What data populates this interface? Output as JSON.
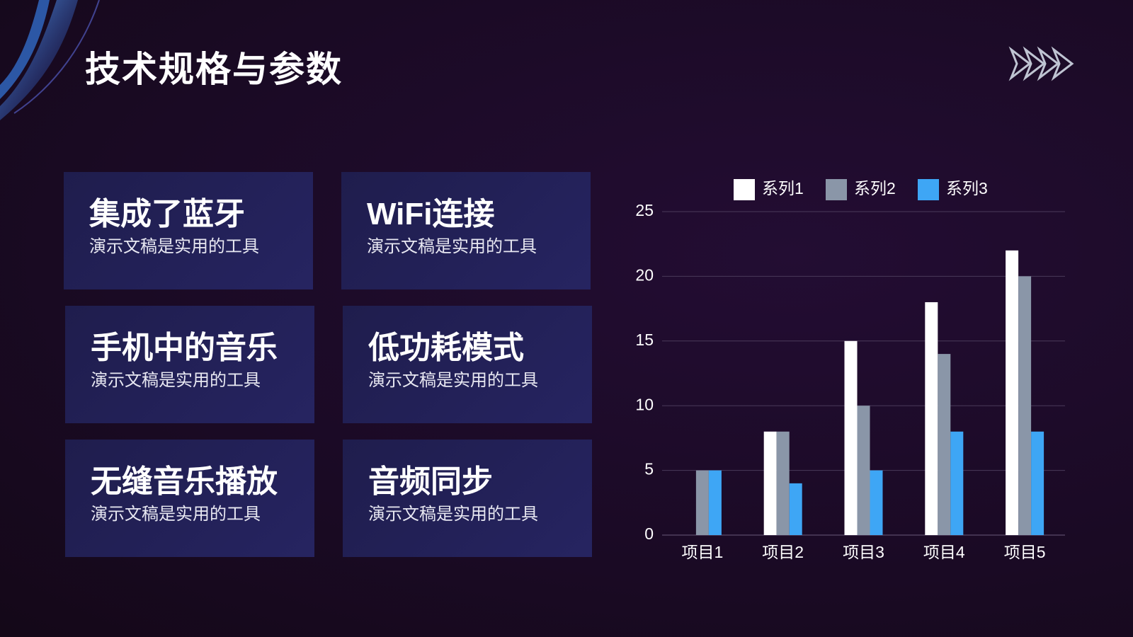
{
  "title": "技术规格与参数",
  "cards": [
    {
      "title": "集成了蓝牙",
      "text": "演示文稿是实用的工具"
    },
    {
      "title": "WiFi连接",
      "text": "演示文稿是实用的工具"
    },
    {
      "title": "手机中的音乐",
      "text": "演示文稿是实用的工具"
    },
    {
      "title": "低功耗模式",
      "text": "演示文稿是实用的工具"
    },
    {
      "title": "无缝音乐播放",
      "text": "演示文稿是实用的工具"
    },
    {
      "title": "音频同步",
      "text": "演示文稿是实用的工具"
    }
  ],
  "chart_data": {
    "type": "bar",
    "categories": [
      "项目1",
      "项目2",
      "项目3",
      "项目4",
      "项目5"
    ],
    "series": [
      {
        "name": "系列1",
        "color": "#ffffff",
        "values": [
          0,
          8,
          15,
          18,
          22
        ]
      },
      {
        "name": "系列2",
        "color": "#8a96a8",
        "values": [
          5,
          8,
          10,
          14,
          20
        ]
      },
      {
        "name": "系列3",
        "color": "#3ea6f5",
        "values": [
          5,
          4,
          5,
          8,
          8
        ]
      }
    ],
    "ylim": [
      0,
      25
    ],
    "yticks": [
      0,
      5,
      10,
      15,
      20,
      25
    ],
    "grid": true,
    "legend": "top"
  }
}
